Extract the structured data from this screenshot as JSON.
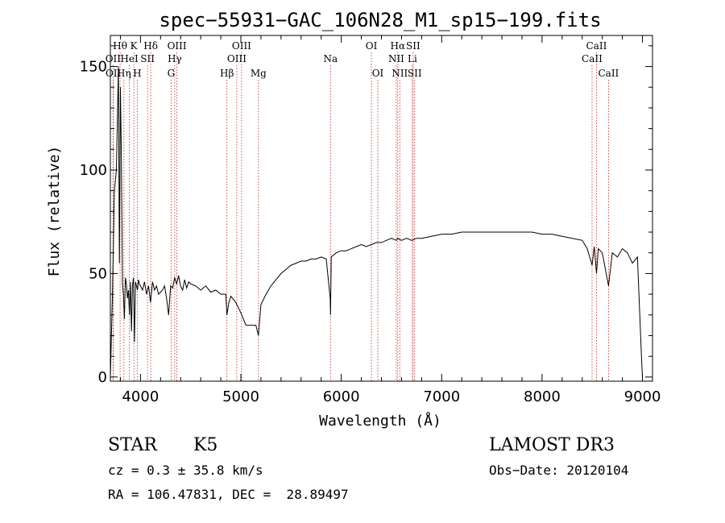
{
  "chart_data": {
    "type": "line",
    "title": "spec−55931−GAC_106N28_M1_sp15−199.fits",
    "xlabel": "Wavelength (Å)",
    "ylabel": "Flux (relative)",
    "xlim": [
      3700,
      9100
    ],
    "ylim": [
      -2,
      165
    ],
    "xticks": [
      4000,
      5000,
      6000,
      7000,
      8000,
      9000
    ],
    "yticks": [
      0,
      50,
      100,
      150
    ],
    "grid": false,
    "series": [
      {
        "x": [
          3700,
          3720,
          3740,
          3760,
          3780,
          3790,
          3800,
          3810,
          3820,
          3830,
          3840,
          3850,
          3860,
          3870,
          3880,
          3890,
          3900,
          3910,
          3920,
          3930,
          3940,
          3950,
          3960,
          3970,
          3980,
          3990,
          4000,
          4020,
          4040,
          4060,
          4080,
          4100,
          4120,
          4140,
          4160,
          4180,
          4200,
          4220,
          4240,
          4260,
          4280,
          4300,
          4320,
          4340,
          4360,
          4380,
          4400,
          4420,
          4440,
          4460,
          4480,
          4500,
          4550,
          4600,
          4650,
          4700,
          4750,
          4800,
          4850,
          4861,
          4880,
          4900,
          4950,
          5000,
          5050,
          5100,
          5150,
          5175,
          5200,
          5250,
          5300,
          5350,
          5400,
          5450,
          5500,
          5550,
          5600,
          5650,
          5700,
          5750,
          5800,
          5850,
          5890,
          5893,
          5900,
          5950,
          6000,
          6050,
          6100,
          6150,
          6200,
          6250,
          6300,
          6350,
          6400,
          6450,
          6500,
          6550,
          6563,
          6600,
          6650,
          6700,
          6750,
          6800,
          6900,
          7000,
          7100,
          7200,
          7300,
          7400,
          7500,
          7600,
          7700,
          7800,
          7900,
          8000,
          8100,
          8200,
          8300,
          8400,
          8450,
          8498,
          8520,
          8542,
          8560,
          8600,
          8662,
          8700,
          8750,
          8800,
          8850,
          8900,
          8950,
          8990,
          9000
        ],
        "values": [
          0,
          38,
          90,
          100,
          150,
          55,
          140,
          105,
          45,
          40,
          28,
          48,
          45,
          38,
          42,
          30,
          46,
          22,
          44,
          48,
          17,
          46,
          44,
          42,
          47,
          45,
          44,
          42,
          46,
          40,
          44,
          36,
          46,
          42,
          44,
          40,
          41,
          42,
          44,
          38,
          30,
          44,
          43,
          48,
          45,
          49,
          44,
          42,
          47,
          43,
          46,
          45,
          44,
          42,
          44,
          41,
          42,
          40,
          40,
          30,
          36,
          39,
          36,
          31,
          25,
          25,
          25,
          20,
          35,
          40,
          44,
          47,
          50,
          52,
          54,
          55,
          56,
          56,
          57,
          57,
          58,
          57,
          38,
          30,
          58,
          60,
          61,
          61,
          62,
          63,
          64,
          63,
          64,
          65,
          65,
          66,
          67,
          66,
          67,
          66,
          67,
          66,
          67,
          67,
          68,
          69,
          69,
          70,
          70,
          70,
          70,
          70,
          70,
          70,
          70,
          69,
          69,
          68,
          67,
          66,
          62,
          54,
          63,
          50,
          62,
          60,
          44,
          60,
          58,
          62,
          60,
          55,
          58,
          10,
          0
        ]
      }
    ],
    "lines": [
      {
        "name": "Hθ",
        "wl": 3797,
        "row": 0
      },
      {
        "name": "OII",
        "wl": 3727,
        "row": 1
      },
      {
        "name": "OII",
        "wl": 3729,
        "row": 2
      },
      {
        "name": "Hη",
        "wl": 3835,
        "row": 2
      },
      {
        "name": "HeI",
        "wl": 3889,
        "row": 1
      },
      {
        "name": "K",
        "wl": 3934,
        "row": 0
      },
      {
        "name": "H",
        "wl": 3968,
        "row": 2
      },
      {
        "name": "SII",
        "wl": 4070,
        "row": 1
      },
      {
        "name": "Hδ",
        "wl": 4102,
        "row": 0
      },
      {
        "name": "G",
        "wl": 4305,
        "row": 2
      },
      {
        "name": "Hγ",
        "wl": 4341,
        "row": 1
      },
      {
        "name": "OIII",
        "wl": 4363,
        "row": 0
      },
      {
        "name": "Hβ",
        "wl": 4861,
        "row": 2
      },
      {
        "name": "OIII",
        "wl": 4959,
        "row": 1
      },
      {
        "name": "OIII",
        "wl": 5007,
        "row": 0
      },
      {
        "name": "Mg",
        "wl": 5175,
        "row": 2
      },
      {
        "name": "Na",
        "wl": 5893,
        "row": 1
      },
      {
        "name": "OI",
        "wl": 6300,
        "row": 0
      },
      {
        "name": "OI",
        "wl": 6364,
        "row": 2
      },
      {
        "name": "NII",
        "wl": 6548,
        "row": 1
      },
      {
        "name": "Hα",
        "wl": 6563,
        "row": 0
      },
      {
        "name": "NII",
        "wl": 6583,
        "row": 2
      },
      {
        "name": "SII",
        "wl": 6716,
        "row": 0
      },
      {
        "name": "Li",
        "wl": 6708,
        "row": 1
      },
      {
        "name": "SII",
        "wl": 6731,
        "row": 2
      },
      {
        "name": "CaII",
        "wl": 8498,
        "row": 1
      },
      {
        "name": "CaII",
        "wl": 8542,
        "row": 0
      },
      {
        "name": "CaII",
        "wl": 8662,
        "row": 2
      }
    ]
  },
  "info": {
    "class": "STAR",
    "subclass": "K5",
    "survey": "LAMOST DR3",
    "cz": "cz = 0.3 ± 35.8 km/s",
    "obs_date": "Obs−Date: 20120104",
    "coords": "RA = 106.47831, DEC =  28.89497"
  },
  "colors": {
    "line_marker": "#cc2222",
    "spectrum": "#000000"
  }
}
